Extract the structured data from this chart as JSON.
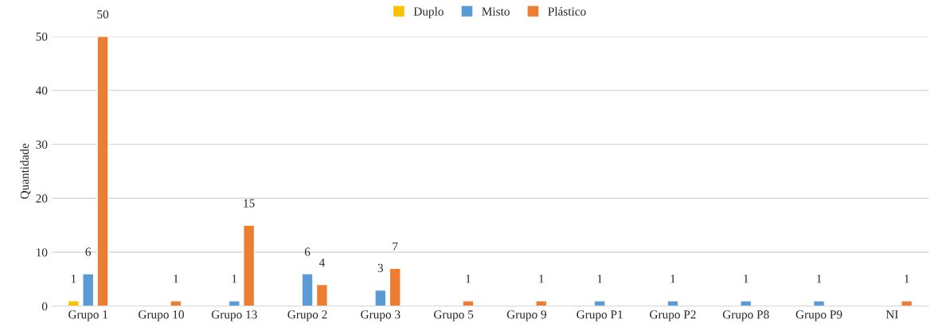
{
  "chart_data": {
    "type": "bar",
    "ylabel": "Quantidade",
    "categories": [
      "Grupo 1",
      "Grupo 10",
      "Grupo 13",
      "Grupo 2",
      "Grupo 3",
      "Grupo 5",
      "Grupo 9",
      "Grupo P1",
      "Grupo P2",
      "Grupo P8",
      "Grupo P9",
      "NI"
    ],
    "series": [
      {
        "name": "Duplo",
        "color": "#ffc000",
        "values": [
          1,
          null,
          null,
          null,
          null,
          null,
          null,
          null,
          null,
          null,
          null,
          null
        ]
      },
      {
        "name": "Misto",
        "color": "#5b9bd5",
        "values": [
          6,
          null,
          1,
          6,
          3,
          null,
          null,
          1,
          1,
          1,
          1,
          null
        ]
      },
      {
        "name": "Plástico",
        "color": "#ed7d31",
        "values": [
          50,
          1,
          15,
          4,
          7,
          1,
          1,
          null,
          null,
          null,
          null,
          1
        ]
      }
    ],
    "ylim": [
      0,
      50
    ],
    "yticks": [
      0,
      10,
      20,
      30,
      40,
      50
    ],
    "grid": "y",
    "legend": "top",
    "data_labels": true
  }
}
